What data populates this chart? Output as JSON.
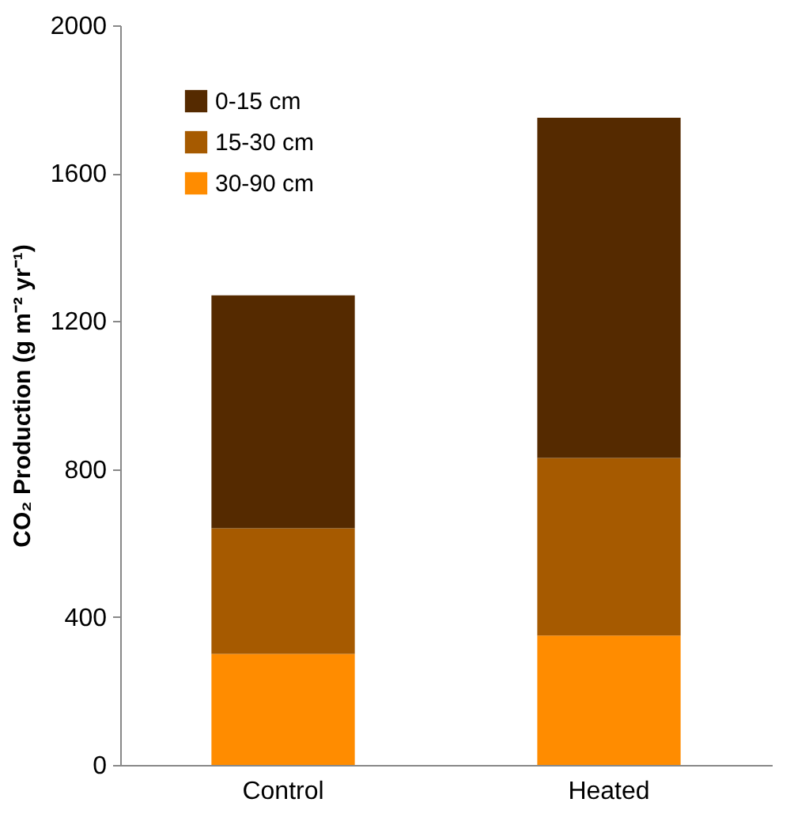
{
  "chart_data": {
    "type": "bar",
    "stacked": true,
    "categories": [
      "Control",
      "Heated"
    ],
    "ylabel": "CO₂ Production (g m⁻² yr⁻¹)",
    "ylim": [
      0,
      2000
    ],
    "yticks": [
      0,
      400,
      800,
      1200,
      1600,
      2000
    ],
    "grid": false,
    "legend": "top left",
    "series": [
      {
        "name": "30-90 cm",
        "color": "#ff8c00",
        "values": [
          300,
          350
        ]
      },
      {
        "name": "15-30 cm",
        "color": "#a65a00",
        "values": [
          340,
          480
        ]
      },
      {
        "name": "0-15 cm",
        "color": "#552a00",
        "values": [
          630,
          920
        ]
      }
    ]
  }
}
